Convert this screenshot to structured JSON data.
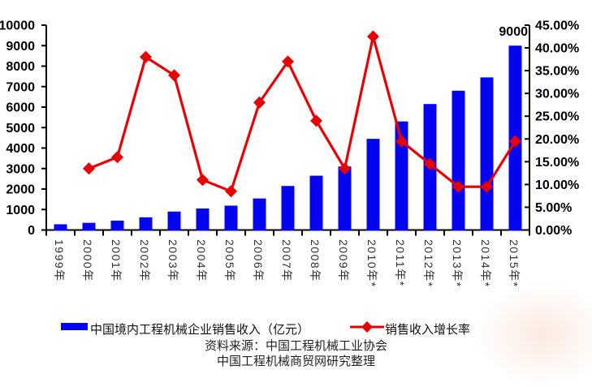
{
  "chart_data": {
    "type": "combo",
    "categories": [
      "1999年",
      "2000年",
      "2001年",
      "2002年",
      "2003年",
      "2004年",
      "2005年",
      "2006年",
      "2007年",
      "2008年",
      "2009年",
      "2010年*",
      "2011年*",
      "2012年*",
      "2013年*",
      "2014年*",
      "2015年*"
    ],
    "series": [
      {
        "name": "中国境内工程机械企业销售收入（亿元）",
        "type": "bar",
        "axis": "left",
        "color": "#0404F0",
        "values": [
          280,
          350,
          460,
          620,
          900,
          1050,
          1190,
          1540,
          2150,
          2650,
          3100,
          4450,
          5300,
          6150,
          6800,
          7450,
          9000
        ]
      },
      {
        "name": "销售收入增长率",
        "type": "line",
        "axis": "right",
        "color": "#E80000",
        "marker": "diamond",
        "values": [
          null,
          13.5,
          16,
          38,
          34,
          11,
          8.5,
          28,
          37,
          24,
          13.5,
          42.5,
          19.5,
          14.5,
          9.5,
          9.5,
          19.5
        ]
      }
    ],
    "left_axis": {
      "min": 0,
      "max": 10000,
      "step": 1000,
      "tick_labels": [
        "0",
        "1000",
        "2000",
        "3000",
        "4000",
        "5000",
        "6000",
        "7000",
        "8000",
        "9000",
        "10000"
      ]
    },
    "right_axis": {
      "min": 0,
      "max": 45,
      "step": 5,
      "tick_labels": [
        "0.00%",
        "5.00%",
        "10.00%",
        "15.00%",
        "20.00%",
        "25.00%",
        "30.00%",
        "35.00%",
        "40.00%",
        "45.00%"
      ]
    },
    "annotation": {
      "text": "9000",
      "category": "2015年*",
      "series": "中国境内工程机械企业销售收入（亿元）"
    },
    "grid": false,
    "legend_position": "bottom"
  },
  "legend": {
    "bar_label": "中国境内工程机械企业销售收入（亿元）",
    "line_label": "销售收入增长率"
  },
  "source": {
    "line1": "资料来源：中国工程机械工业协会",
    "line2": "中国工程机械商贸网研究整理"
  },
  "colors": {
    "bar": "#0404F0",
    "line": "#E80000",
    "axis": "#000000",
    "x_label": "#2f2f2f",
    "background": "#ffffff"
  }
}
